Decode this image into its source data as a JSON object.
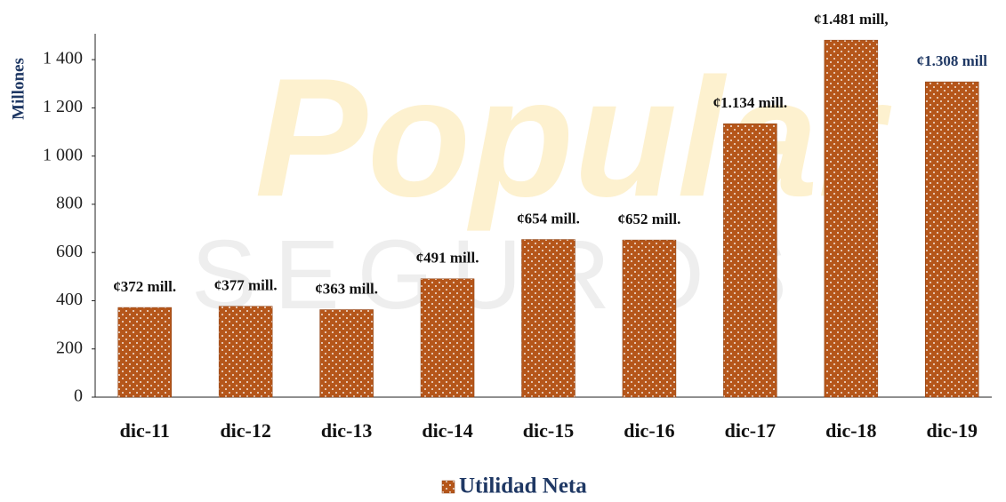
{
  "chart_data": {
    "type": "bar",
    "watermark": [
      "Popular",
      "SEGUROS"
    ],
    "y_label": "Millones",
    "categories": [
      "dic-11",
      "dic-12",
      "dic-13",
      "dic-14",
      "dic-15",
      "dic-16",
      "dic-17",
      "dic-18",
      "dic-19"
    ],
    "series": [
      {
        "name": "Utilidad Neta",
        "color": "#b5561a",
        "values": [
          372,
          377,
          363,
          491,
          654,
          652,
          1134,
          1481,
          1308
        ],
        "value_labels": [
          "¢372 mill.",
          "¢377 mill.",
          "¢363 mill.",
          "¢491 mill.",
          "¢654 mill.",
          "¢652 mill.",
          "¢1.134 mill.",
          "¢1.481 mill,",
          "¢1.308 mill"
        ],
        "value_label_colors": [
          "#111111",
          "#111111",
          "#111111",
          "#111111",
          "#111111",
          "#111111",
          "#111111",
          "#111111",
          "#1f3864"
        ]
      }
    ],
    "ylim": [
      0,
      1500
    ],
    "yticks": [
      0,
      200,
      400,
      600,
      800,
      {
        "value": 1000,
        "label": "1 000"
      },
      {
        "value": 1200,
        "label": "1 200"
      },
      {
        "value": 1400,
        "label": "1 400"
      }
    ],
    "grid": false,
    "legend": "bottom"
  }
}
